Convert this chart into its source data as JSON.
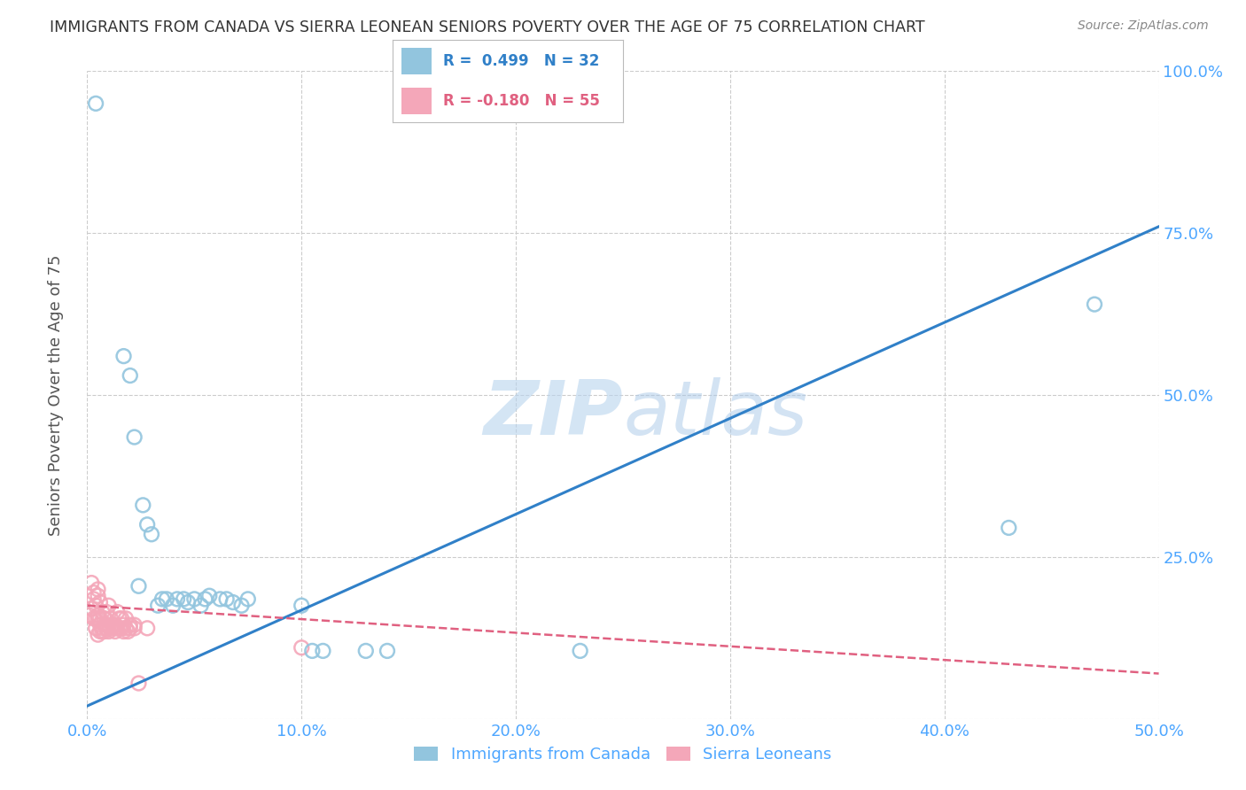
{
  "title": "IMMIGRANTS FROM CANADA VS SIERRA LEONEAN SENIORS POVERTY OVER THE AGE OF 75 CORRELATION CHART",
  "source": "Source: ZipAtlas.com",
  "xlabel_blue": "Immigrants from Canada",
  "xlabel_pink": "Sierra Leoneans",
  "ylabel": "Seniors Poverty Over the Age of 75",
  "watermark": "ZIPAtlas",
  "blue_R": 0.499,
  "blue_N": 32,
  "pink_R": -0.18,
  "pink_N": 55,
  "blue_color": "#92c5de",
  "pink_color": "#f4a7b9",
  "blue_line_color": "#3080c8",
  "pink_line_color": "#e06080",
  "background_color": "#ffffff",
  "grid_color": "#cccccc",
  "axis_label_color": "#4da6ff",
  "title_color": "#333333",
  "blue_points": [
    [
      0.004,
      0.95
    ],
    [
      0.017,
      0.56
    ],
    [
      0.02,
      0.53
    ],
    [
      0.022,
      0.435
    ],
    [
      0.024,
      0.205
    ],
    [
      0.026,
      0.33
    ],
    [
      0.028,
      0.3
    ],
    [
      0.03,
      0.285
    ],
    [
      0.033,
      0.175
    ],
    [
      0.035,
      0.185
    ],
    [
      0.037,
      0.185
    ],
    [
      0.04,
      0.175
    ],
    [
      0.042,
      0.185
    ],
    [
      0.045,
      0.185
    ],
    [
      0.047,
      0.18
    ],
    [
      0.05,
      0.185
    ],
    [
      0.053,
      0.175
    ],
    [
      0.055,
      0.185
    ],
    [
      0.057,
      0.19
    ],
    [
      0.062,
      0.185
    ],
    [
      0.065,
      0.185
    ],
    [
      0.068,
      0.18
    ],
    [
      0.072,
      0.175
    ],
    [
      0.075,
      0.185
    ],
    [
      0.1,
      0.175
    ],
    [
      0.105,
      0.105
    ],
    [
      0.11,
      0.105
    ],
    [
      0.13,
      0.105
    ],
    [
      0.14,
      0.105
    ],
    [
      0.23,
      0.105
    ],
    [
      0.43,
      0.295
    ],
    [
      0.47,
      0.64
    ]
  ],
  "pink_points": [
    [
      0.001,
      0.16
    ],
    [
      0.002,
      0.17
    ],
    [
      0.002,
      0.21
    ],
    [
      0.003,
      0.155
    ],
    [
      0.003,
      0.185
    ],
    [
      0.003,
      0.195
    ],
    [
      0.004,
      0.14
    ],
    [
      0.004,
      0.155
    ],
    [
      0.004,
      0.175
    ],
    [
      0.005,
      0.13
    ],
    [
      0.005,
      0.155
    ],
    [
      0.005,
      0.16
    ],
    [
      0.005,
      0.19
    ],
    [
      0.005,
      0.2
    ],
    [
      0.006,
      0.135
    ],
    [
      0.006,
      0.145
    ],
    [
      0.006,
      0.155
    ],
    [
      0.006,
      0.18
    ],
    [
      0.007,
      0.135
    ],
    [
      0.007,
      0.14
    ],
    [
      0.007,
      0.165
    ],
    [
      0.008,
      0.135
    ],
    [
      0.008,
      0.145
    ],
    [
      0.008,
      0.155
    ],
    [
      0.009,
      0.14
    ],
    [
      0.009,
      0.145
    ],
    [
      0.009,
      0.165
    ],
    [
      0.01,
      0.135
    ],
    [
      0.01,
      0.145
    ],
    [
      0.01,
      0.175
    ],
    [
      0.011,
      0.14
    ],
    [
      0.011,
      0.155
    ],
    [
      0.012,
      0.14
    ],
    [
      0.012,
      0.145
    ],
    [
      0.013,
      0.135
    ],
    [
      0.013,
      0.14
    ],
    [
      0.013,
      0.145
    ],
    [
      0.014,
      0.14
    ],
    [
      0.014,
      0.165
    ],
    [
      0.015,
      0.14
    ],
    [
      0.015,
      0.155
    ],
    [
      0.016,
      0.14
    ],
    [
      0.016,
      0.155
    ],
    [
      0.017,
      0.135
    ],
    [
      0.017,
      0.145
    ],
    [
      0.018,
      0.14
    ],
    [
      0.018,
      0.155
    ],
    [
      0.019,
      0.135
    ],
    [
      0.02,
      0.14
    ],
    [
      0.02,
      0.145
    ],
    [
      0.022,
      0.14
    ],
    [
      0.022,
      0.145
    ],
    [
      0.024,
      0.055
    ],
    [
      0.028,
      0.14
    ],
    [
      0.1,
      0.11
    ]
  ],
  "xlim": [
    0.0,
    0.5
  ],
  "ylim": [
    0.0,
    1.0
  ],
  "xticks": [
    0.0,
    0.1,
    0.2,
    0.3,
    0.4,
    0.5
  ],
  "yticks": [
    0.0,
    0.25,
    0.5,
    0.75,
    1.0
  ],
  "ytick_labels": [
    "",
    "25.0%",
    "50.0%",
    "75.0%",
    "100.0%"
  ],
  "xtick_labels": [
    "0.0%",
    "10.0%",
    "20.0%",
    "30.0%",
    "40.0%",
    "50.0%"
  ]
}
